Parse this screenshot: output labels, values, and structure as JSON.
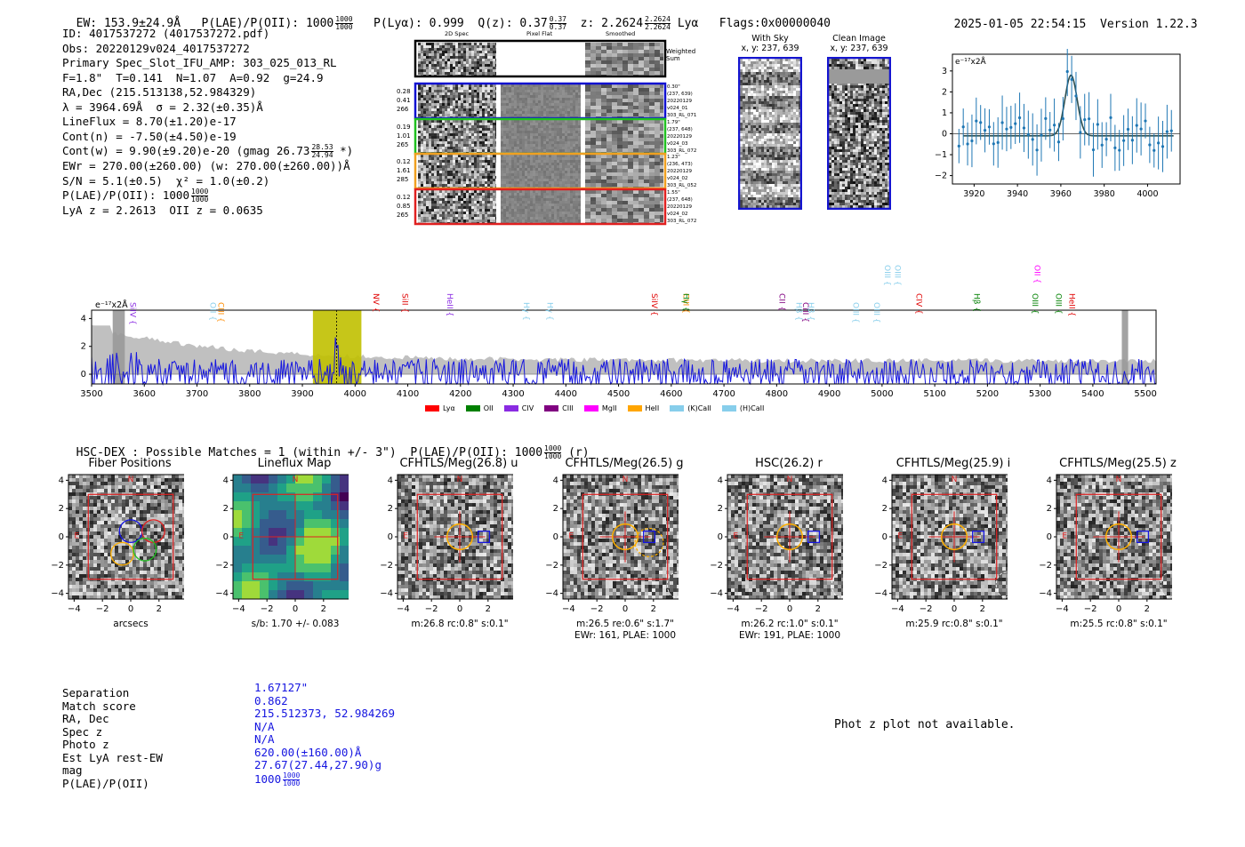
{
  "header": {
    "ew": "EW: 153.9±24.9Å",
    "plae_label": "P(LAE)/P(OII): 1000",
    "plae_num": "1000",
    "plae_den": "1000",
    "plya": "P(Lyα): 0.999",
    "qz_label": "Q(z): 0.37",
    "qz_num": "0.37",
    "qz_den": "0.37",
    "z_label": "z: 2.2624",
    "z_num": "2.2624",
    "z_den": "2.2624",
    "z_line": "Lyα",
    "flags": "Flags:0x00000040",
    "datetime": "2025-01-05 22:54:15",
    "version": "Version 1.22.3"
  },
  "info": {
    "id": "ID: 4017537272 (4017537272.pdf)",
    "obs": "Obs: 20220129v024_4017537272",
    "primary": "Primary Spec_Slot_IFU_AMP: 303_025_013_RL",
    "fiber": "F=1.8\"  T=0.141  N=1.07  A=0.92  g=24.9",
    "radec": "RA,Dec (215.513138,52.984329)",
    "lambda": "λ = 3964.69Å  σ = 2.32(±0.35)Å",
    "lineflux": "LineFlux = 8.70(±1.20)e-17",
    "contn": "Cont(n) = -7.50(±4.50)e-19",
    "contw": "Cont(w) = 9.90(±9.20)e-20 (gmag 26.73",
    "contw_num": "28.53",
    "contw_den": "24.94",
    "contw_tail": "*)",
    "ewr": "EWr = 270.00(±260.00) (w: 270.00(±260.00))Å",
    "sn": "S/N = 5.1(±0.5)  χ² = 1.0(±0.2)",
    "plae": "P(LAE)/P(OII): 1000",
    "plae_num": "1000",
    "plae_den": "1000",
    "lyaz": "LyA z = 2.2613  OII z = 0.0635"
  },
  "cutouts": {
    "col_2d": "2D Spec",
    "col_flat": "Pixel Flat",
    "col_smooth": "Smoothed",
    "weighted": "Weighted",
    "sum": "Sum",
    "rows": [
      {
        "left": [
          "0.28",
          "0.41",
          "266"
        ],
        "right": [
          "0.30\"",
          "(237, 639)",
          "20220129",
          "v024_01",
          "303_RL_071"
        ],
        "color": "#1010d0"
      },
      {
        "left": [
          "0.19",
          "1.01",
          "265"
        ],
        "right": [
          "1.79\"",
          "(237, 648)",
          "20220129",
          "v024_03",
          "303_RL_072"
        ],
        "color": "#20c020"
      },
      {
        "left": [
          "0.12",
          "1.61",
          "285"
        ],
        "right": [
          "1.23\"",
          "(236, 473)",
          "20220129",
          "v024_02",
          "303_RL_052"
        ],
        "color": "#f0a020"
      },
      {
        "left": [
          "0.12",
          "0.85",
          "265"
        ],
        "right": [
          "1.55\"",
          "(237, 648)",
          "20220129",
          "v024_02",
          "303_RL_072"
        ],
        "color": "#e02020"
      }
    ],
    "with_sky": "With Sky",
    "with_sky_xy": "x, y: 237, 639",
    "clean": "Clean Image",
    "clean_xy": "x, y: 237, 639"
  },
  "zoom_plot": {
    "ylabel": "e⁻¹⁷x2Å",
    "xticks": [
      "3920",
      "3940",
      "3960",
      "3980",
      "4000"
    ],
    "yticks": [
      "3",
      "2",
      "1",
      "0",
      "−1",
      "−2"
    ]
  },
  "spectrum": {
    "ylabel": "e⁻¹⁷x2Å",
    "xticks": [
      "3500",
      "3600",
      "3700",
      "3800",
      "3900",
      "4000",
      "4100",
      "4200",
      "4300",
      "4400",
      "4500",
      "4600",
      "4700",
      "4800",
      "4900",
      "5000",
      "5100",
      "5200",
      "5300",
      "5400",
      "5500"
    ],
    "yticks": [
      "4",
      "2",
      "0"
    ],
    "lines": [
      {
        "label": "SiIV",
        "color": "#8a2be2"
      },
      {
        "label": "OII",
        "color": "#87ceeb"
      },
      {
        "label": "CIII",
        "color": "#ff8c00"
      },
      {
        "label": "NV",
        "color": "#e00000"
      },
      {
        "label": "SiII",
        "color": "#e00000"
      },
      {
        "label": "HeII",
        "color": "#8a2be2"
      },
      {
        "label": "Hγ",
        "color": "#87ceeb"
      },
      {
        "label": "Hγ",
        "color": "#87ceeb"
      },
      {
        "label": "SiIV",
        "color": "#e00000"
      },
      {
        "label": "CIII",
        "color": "#ff8c00"
      },
      {
        "label": "Hγ",
        "color": "#008000"
      },
      {
        "label": "CII",
        "color": "#800080"
      },
      {
        "label": "Hβ",
        "color": "#87ceeb"
      },
      {
        "label": "CIII",
        "color": "#800080"
      },
      {
        "label": "Hβ",
        "color": "#87ceeb"
      },
      {
        "label": "OIII",
        "color": "#87ceeb"
      },
      {
        "label": "OIII",
        "color": "#87ceeb"
      },
      {
        "label": "OIII",
        "color": "#87ceeb"
      },
      {
        "label": "OIII",
        "color": "#87ceeb"
      },
      {
        "label": "CIV",
        "color": "#e00000"
      },
      {
        "label": "Hβ",
        "color": "#008000"
      },
      {
        "label": "OIII",
        "color": "#008000"
      },
      {
        "label": "OII",
        "color": "#ff00ff"
      },
      {
        "label": "OIII",
        "color": "#008000"
      },
      {
        "label": "HeII",
        "color": "#e00000"
      }
    ],
    "legend": [
      {
        "label": "Lyα",
        "color": "#ff0000"
      },
      {
        "label": "OII",
        "color": "#008000"
      },
      {
        "label": "CIV",
        "color": "#8a2be2"
      },
      {
        "label": "CIII",
        "color": "#800080"
      },
      {
        "label": "MgII",
        "color": "#ff00ff"
      },
      {
        "label": "HeII",
        "color": "#ffa500"
      },
      {
        "label": "(K)CaII",
        "color": "#87ceeb"
      },
      {
        "label": "(H)CaII",
        "color": "#87ceeb"
      }
    ]
  },
  "hsc": {
    "title": "HSC-DEX : Possible Matches = 1 (within +/- 3\")  P(LAE)/P(OII): 1000",
    "title_num": "1000",
    "title_den": "1000",
    "title_band": "(r)"
  },
  "panels": [
    {
      "title": "Fiber Positions",
      "sub1": "arcsecs",
      "sub2": "",
      "type": "fiber"
    },
    {
      "title": "Lineflux Map",
      "sub1": "s/b: 1.70 +/- 0.083",
      "sub2": "",
      "type": "lineflux"
    },
    {
      "title": "CFHTLS/Meg(26.8) u",
      "sub1": "m:26.8 rc:0.8\"  s:0.1\"",
      "sub2": "",
      "type": "cut"
    },
    {
      "title": "CFHTLS/Meg(26.5) g",
      "sub1": "m:26.5  re:0.6\"  s:1.7\"",
      "sub2": "EWr: 161, PLAE: 1000",
      "type": "cut"
    },
    {
      "title": "HSC(26.2) r",
      "sub1": "m:26.2 rc:1.0\"  s:0.1\"",
      "sub2": "EWr: 191, PLAE: 1000",
      "type": "cut"
    },
    {
      "title": "CFHTLS/Meg(25.9) i",
      "sub1": "m:25.9 rc:0.8\"  s:0.1\"",
      "sub2": "",
      "type": "cut"
    },
    {
      "title": "CFHTLS/Meg(25.5) z",
      "sub1": "m:25.5 rc:0.8\"  s:0.1\"",
      "sub2": "",
      "type": "cut"
    }
  ],
  "panel_axis": {
    "xticks": [
      "−4",
      "−2",
      "0",
      "2",
      "4"
    ],
    "yticks": [
      "4",
      "2",
      "0",
      "−2",
      "−4"
    ],
    "north": "N",
    "east": "E"
  },
  "match": {
    "labels": [
      "Separation",
      "Match score",
      "RA, Dec",
      "Spec z",
      "Photo z",
      "Est LyA rest-EW",
      "mag",
      "P(LAE)/P(OII)"
    ],
    "values": [
      "1.67127\"",
      "0.862",
      "215.512373, 52.984269",
      "N/A",
      "N/A",
      "620.00(±160.00)Å",
      "27.67(27.44,27.90)g",
      "1000"
    ],
    "plae_num": "1000",
    "plae_den": "1000"
  },
  "photz": "Phot z plot not available."
}
